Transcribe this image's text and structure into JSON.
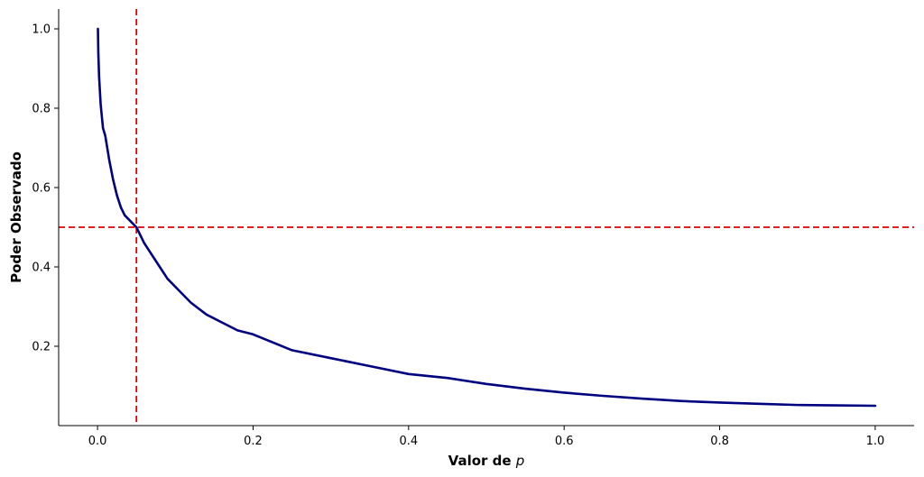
{
  "chart_data": {
    "type": "line",
    "title": "",
    "xlabel_main": "Valor de ",
    "xlabel_var": "p",
    "ylabel": "Poder Observado",
    "xlim": [
      -0.05,
      1.05
    ],
    "ylim": [
      0.0,
      1.05
    ],
    "xticks": [
      0.0,
      0.2,
      0.4,
      0.6,
      0.8,
      1.0
    ],
    "xtick_labels": [
      "0.0",
      "0.2",
      "0.4",
      "0.6",
      "0.8",
      "1.0"
    ],
    "yticks": [
      0.2,
      0.4,
      0.6,
      0.8,
      1.0
    ],
    "ytick_labels": [
      "0.2",
      "0.4",
      "0.6",
      "0.8",
      "1.0"
    ],
    "grid": false,
    "legend": "none",
    "series": [
      {
        "color": "#000080",
        "x": [
          0.0005,
          0.001,
          0.002,
          0.004,
          0.007,
          0.01,
          0.015,
          0.02,
          0.025,
          0.03,
          0.035,
          0.04,
          0.045,
          0.05,
          0.06,
          0.07,
          0.08,
          0.09,
          0.1,
          0.12,
          0.14,
          0.16,
          0.18,
          0.2,
          0.25,
          0.3,
          0.35,
          0.4,
          0.45,
          0.5,
          0.55,
          0.6,
          0.65,
          0.7,
          0.75,
          0.8,
          0.85,
          0.9,
          0.95,
          1.0
        ],
        "y": [
          1.0,
          0.94,
          0.88,
          0.81,
          0.75,
          0.73,
          0.67,
          0.62,
          0.58,
          0.55,
          0.53,
          0.52,
          0.51,
          0.5,
          0.46,
          0.43,
          0.4,
          0.37,
          0.35,
          0.31,
          0.28,
          0.26,
          0.24,
          0.23,
          0.19,
          0.17,
          0.15,
          0.13,
          0.12,
          0.105,
          0.093,
          0.083,
          0.075,
          0.068,
          0.062,
          0.058,
          0.055,
          0.052,
          0.051,
          0.05
        ]
      }
    ],
    "reference_lines": [
      {
        "orientation": "vertical",
        "value": 0.05,
        "color": "#e00000",
        "style": "dashed"
      },
      {
        "orientation": "horizontal",
        "value": 0.5,
        "color": "#e00000",
        "style": "dashed"
      }
    ]
  }
}
